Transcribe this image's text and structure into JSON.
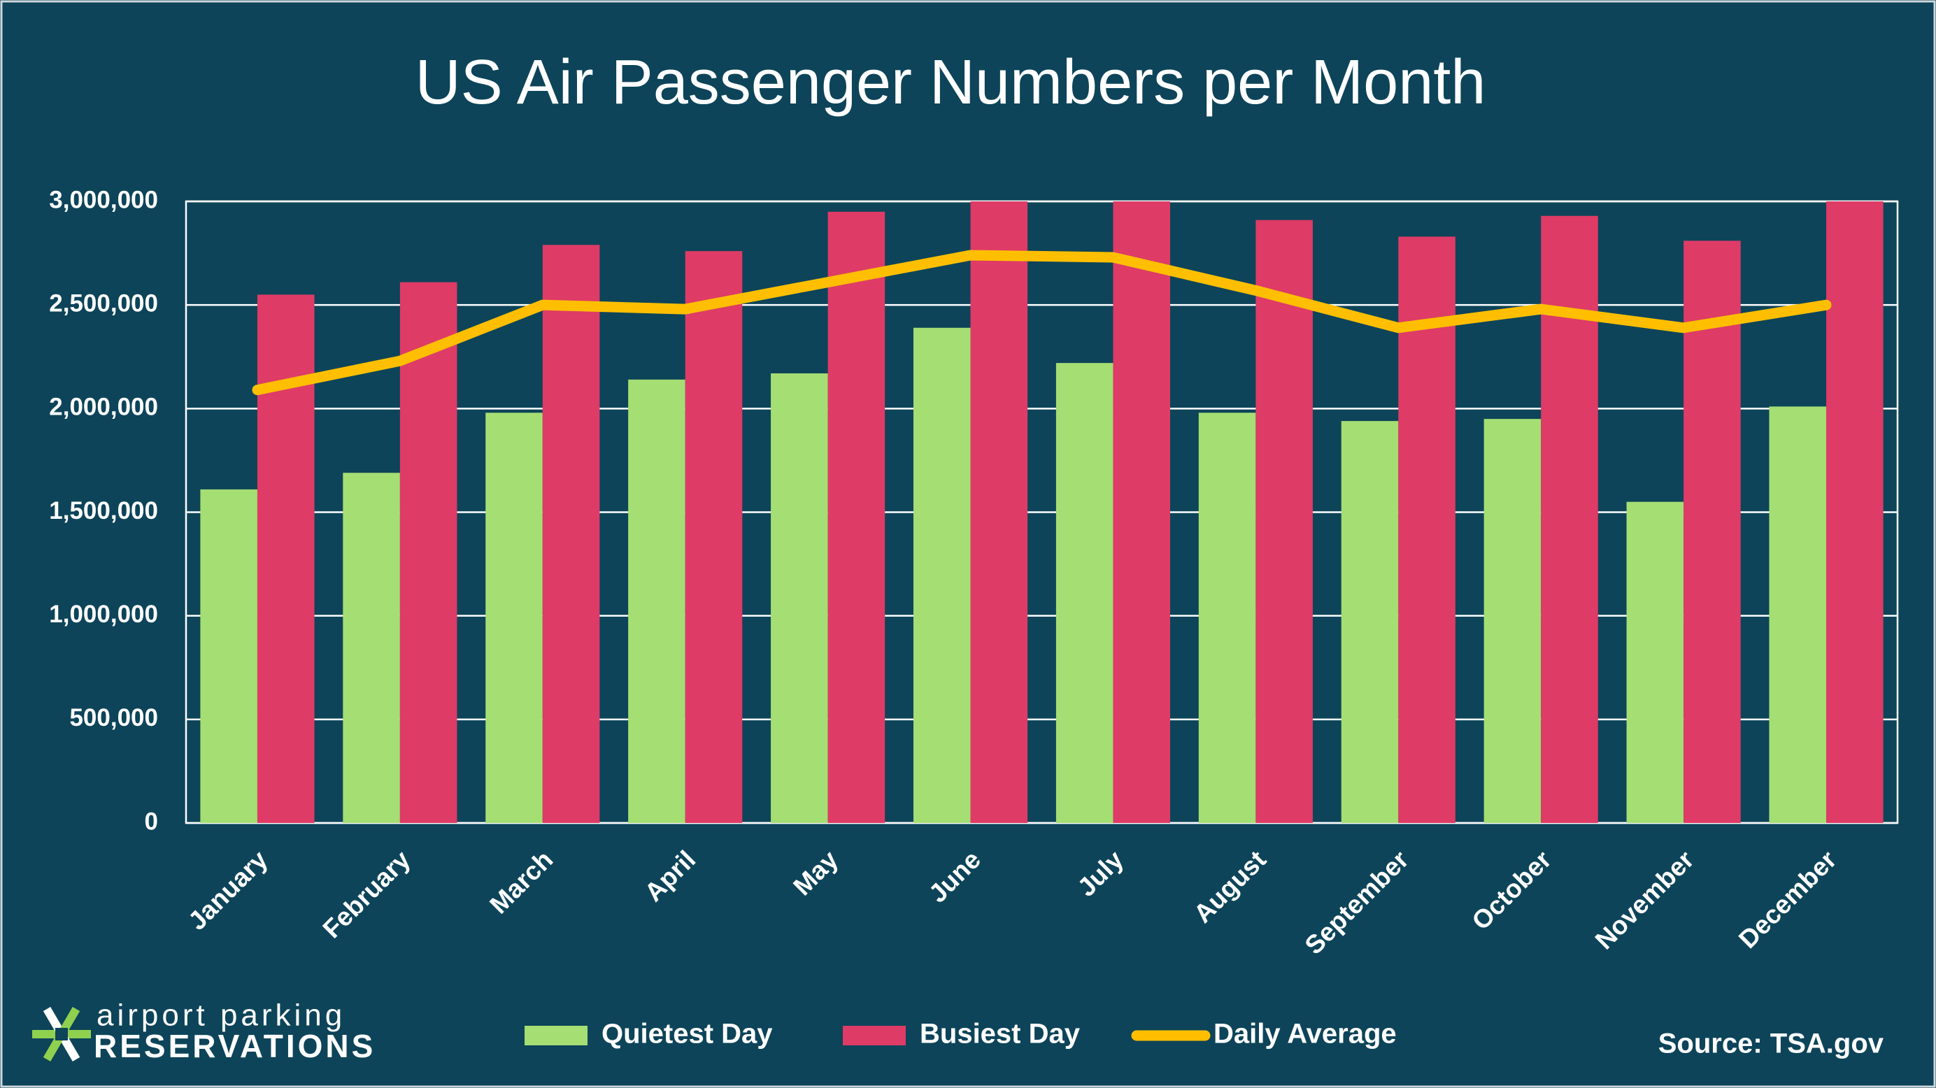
{
  "chart_data": {
    "type": "bar-line",
    "title": "US Air Passenger Numbers per Month",
    "source": "Source: TSA.gov",
    "categories": [
      "January",
      "February",
      "March",
      "April",
      "May",
      "June",
      "July",
      "August",
      "September",
      "October",
      "November",
      "December"
    ],
    "series": [
      {
        "name": "Quietest Day",
        "type": "bar",
        "color": "#a5de73",
        "values": [
          1610000,
          1690000,
          1980000,
          2140000,
          2170000,
          2390000,
          2220000,
          1980000,
          1940000,
          1950000,
          1550000,
          2010000
        ]
      },
      {
        "name": "Busiest Day",
        "type": "bar",
        "color": "#de3b66",
        "values": [
          2550000,
          2610000,
          2790000,
          2760000,
          2950000,
          3000000,
          3000000,
          2910000,
          2830000,
          2930000,
          2810000,
          3000000
        ]
      },
      {
        "name": "Daily Average",
        "type": "line",
        "color": "#ffbf00",
        "values": [
          2090000,
          2230000,
          2500000,
          2480000,
          2610000,
          2740000,
          2730000,
          2570000,
          2390000,
          2480000,
          2390000,
          2500000
        ]
      }
    ],
    "ylim": [
      0,
      3000000
    ],
    "yticks": [
      0,
      {
        "value": 500000,
        "label": "500,000"
      },
      {
        "value": 1000000,
        "label": "1,000,000"
      },
      {
        "value": 1500000,
        "label": "1,500,000"
      },
      {
        "value": 2000000,
        "label": "2,000,000"
      },
      {
        "value": 2500000,
        "label": "2,500,000"
      },
      {
        "value": 3000000,
        "label": "3,000,000"
      }
    ],
    "grid": true,
    "legend": "bottom"
  },
  "branding": {
    "line1": "airport parking",
    "line2": "RESERVATIONS"
  }
}
